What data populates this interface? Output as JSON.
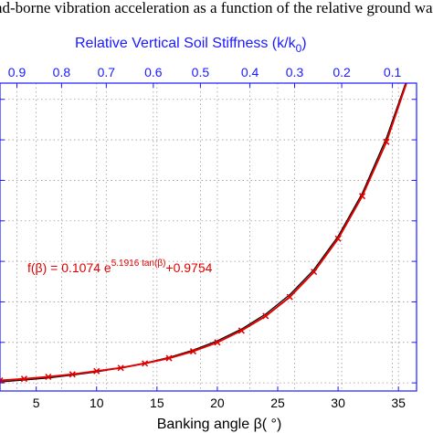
{
  "header": {
    "title_fragment": "nd-borne vibration acceleration as a function of the relative ground wat"
  },
  "chart_data": {
    "type": "line",
    "xlabel": "Banking angle β( °)",
    "top_axis_label": "Relative Vertical Soil Stiffness (k/k",
    "top_axis_label_subscript": "0",
    "top_axis_label_close": ")",
    "xlim": [
      2,
      36.5
    ],
    "ylim": [
      0.8,
      8.4
    ],
    "x_ticks": [
      5,
      10,
      15,
      20,
      25,
      30,
      35
    ],
    "y_gridlines": [
      1,
      2,
      3,
      4,
      5,
      6,
      7,
      8
    ],
    "top_ticks": [
      {
        "label": "0.9",
        "beta": 3.4
      },
      {
        "label": "0.8",
        "beta": 7.1
      },
      {
        "label": "0.7",
        "beta": 10.8
      },
      {
        "label": "0.6",
        "beta": 14.7
      },
      {
        "label": "0.5",
        "beta": 18.6
      },
      {
        "label": "0.4",
        "beta": 22.7
      },
      {
        "label": "0.3",
        "beta": 26.4
      },
      {
        "label": "0.2",
        "beta": 30.3
      },
      {
        "label": "0.1",
        "beta": 34.5
      }
    ],
    "grid": true,
    "annotation": {
      "prefix": "f(β) = 0.1074 e",
      "exponent": "5.1916 tan(β)",
      "suffix": "+0.9754"
    },
    "series": [
      {
        "color": "#e00000",
        "marker": "x",
        "x": [
          2,
          4,
          6,
          8,
          10,
          12,
          14,
          16,
          18,
          20,
          22,
          24,
          26,
          28,
          30,
          32,
          34,
          36
        ],
        "y": [
          1.06,
          1.1,
          1.15,
          1.21,
          1.29,
          1.37,
          1.48,
          1.61,
          1.78,
          2.0,
          2.29,
          2.65,
          3.12,
          3.74,
          4.56,
          5.61,
          6.95,
          8.7
        ]
      },
      {
        "color": "#000000",
        "marker": "none",
        "x": [
          2,
          4,
          6,
          8,
          10,
          12,
          14,
          16,
          18,
          20,
          22,
          24,
          26,
          28,
          30,
          32,
          34,
          36
        ],
        "y": [
          1.02,
          1.07,
          1.12,
          1.19,
          1.27,
          1.37,
          1.49,
          1.63,
          1.81,
          2.04,
          2.33,
          2.7,
          3.18,
          3.8,
          4.62,
          5.68,
          7.05,
          8.75
        ]
      }
    ]
  }
}
